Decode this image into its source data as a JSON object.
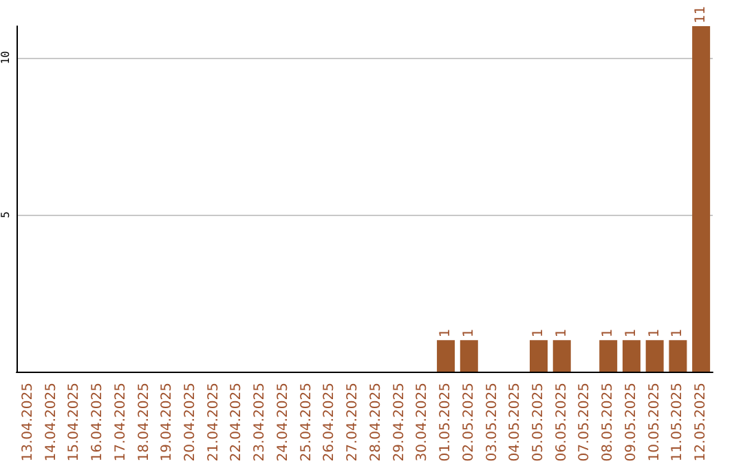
{
  "chart_data": {
    "type": "bar",
    "categories": [
      "13.04.2025",
      "14.04.2025",
      "15.04.2025",
      "16.04.2025",
      "17.04.2025",
      "18.04.2025",
      "19.04.2025",
      "20.04.2025",
      "21.04.2025",
      "22.04.2025",
      "23.04.2025",
      "24.04.2025",
      "25.04.2025",
      "26.04.2025",
      "27.04.2025",
      "28.04.2025",
      "29.04.2025",
      "30.04.2025",
      "01.05.2025",
      "02.05.2025",
      "03.05.2025",
      "04.05.2025",
      "05.05.2025",
      "06.05.2025",
      "07.05.2025",
      "08.05.2025",
      "09.05.2025",
      "10.05.2025",
      "11.05.2025",
      "12.05.2025"
    ],
    "values": [
      0,
      0,
      0,
      0,
      0,
      0,
      0,
      0,
      0,
      0,
      0,
      0,
      0,
      0,
      0,
      0,
      0,
      0,
      1,
      1,
      0,
      0,
      1,
      1,
      0,
      1,
      1,
      1,
      1,
      11
    ],
    "value_labels": [
      null,
      null,
      null,
      null,
      null,
      null,
      null,
      null,
      null,
      null,
      null,
      null,
      null,
      null,
      null,
      null,
      null,
      null,
      "1",
      "1",
      null,
      null,
      "1",
      "1",
      null,
      "1",
      "1",
      "1",
      "1",
      "11"
    ],
    "color": "#a0592b",
    "ylim": [
      0,
      11
    ],
    "yticks": [
      5,
      10
    ],
    "grid": "y"
  }
}
